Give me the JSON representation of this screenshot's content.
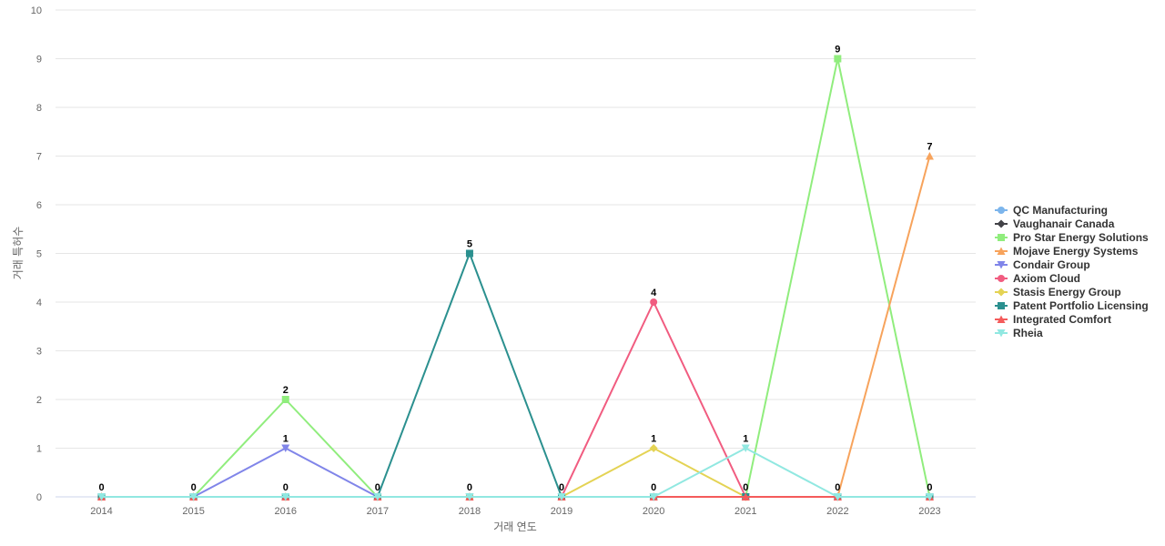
{
  "chart_data": {
    "type": "line",
    "title": "",
    "xlabel": "거래 연도",
    "ylabel": "거래 특허수",
    "ylim": [
      0,
      10
    ],
    "yticks": [
      0,
      1,
      2,
      3,
      4,
      5,
      6,
      7,
      8,
      9,
      10
    ],
    "grid": true,
    "legend_position": "right",
    "categories": [
      "2014",
      "2015",
      "2016",
      "2017",
      "2018",
      "2019",
      "2020",
      "2021",
      "2022",
      "2023"
    ],
    "series": [
      {
        "name": "QC Manufacturing",
        "color": "#7cb5ec",
        "marker": "circle",
        "values": [
          0,
          0,
          0,
          0,
          0,
          0,
          0,
          0,
          0,
          0
        ]
      },
      {
        "name": "Vaughanair Canada",
        "color": "#434348",
        "marker": "diamond",
        "values": [
          0,
          0,
          0,
          0,
          0,
          0,
          0,
          0,
          0,
          0
        ]
      },
      {
        "name": "Pro Star Energy Solutions",
        "color": "#90ed7d",
        "marker": "square",
        "values": [
          0,
          0,
          2,
          0,
          0,
          0,
          0,
          0,
          9,
          0
        ]
      },
      {
        "name": "Mojave Energy Systems",
        "color": "#f7a35c",
        "marker": "triangle",
        "values": [
          0,
          0,
          0,
          0,
          0,
          0,
          0,
          0,
          0,
          7
        ]
      },
      {
        "name": "Condair Group",
        "color": "#8085e9",
        "marker": "triangle-down",
        "values": [
          0,
          0,
          1,
          0,
          0,
          0,
          0,
          0,
          0,
          0
        ]
      },
      {
        "name": "Axiom Cloud",
        "color": "#f15c80",
        "marker": "circle",
        "values": [
          0,
          0,
          0,
          0,
          0,
          0,
          4,
          0,
          0,
          0
        ]
      },
      {
        "name": "Stasis Energy Group",
        "color": "#e4d354",
        "marker": "diamond",
        "values": [
          0,
          0,
          0,
          0,
          0,
          0,
          1,
          0,
          0,
          0
        ]
      },
      {
        "name": "Patent Portfolio Licensing",
        "color": "#2b908f",
        "marker": "square",
        "values": [
          0,
          0,
          0,
          0,
          5,
          0,
          0,
          0,
          0,
          0
        ]
      },
      {
        "name": "Integrated Comfort",
        "color": "#f45b5b",
        "marker": "triangle",
        "values": [
          0,
          0,
          0,
          0,
          0,
          0,
          0,
          0,
          0,
          0
        ]
      },
      {
        "name": "Rheia",
        "color": "#91e8e1",
        "marker": "triangle-down",
        "values": [
          0,
          0,
          0,
          0,
          0,
          0,
          0,
          1,
          0,
          0
        ]
      }
    ],
    "data_labels": [
      {
        "category": "2014",
        "value": 0
      },
      {
        "category": "2015",
        "value": 0
      },
      {
        "category": "2016",
        "value": 2
      },
      {
        "category": "2016",
        "value": 1
      },
      {
        "category": "2016",
        "value": 0
      },
      {
        "category": "2017",
        "value": 0
      },
      {
        "category": "2018",
        "value": 5
      },
      {
        "category": "2018",
        "value": 0
      },
      {
        "category": "2019",
        "value": 0
      },
      {
        "category": "2020",
        "value": 4
      },
      {
        "category": "2020",
        "value": 1
      },
      {
        "category": "2020",
        "value": 0
      },
      {
        "category": "2021",
        "value": 1
      },
      {
        "category": "2021",
        "value": 0
      },
      {
        "category": "2022",
        "value": 9
      },
      {
        "category": "2022",
        "value": 0
      },
      {
        "category": "2023",
        "value": 7
      },
      {
        "category": "2023",
        "value": 0
      }
    ]
  }
}
